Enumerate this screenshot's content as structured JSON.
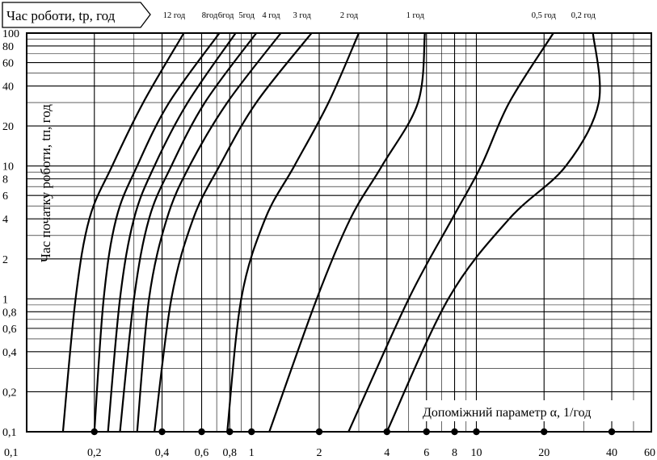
{
  "chart_data": {
    "type": "line",
    "title": "",
    "curve_axis_label": "Час роботи, tр, год",
    "ylabel": "Час початку роботи, tп, год",
    "xlabel": "Допоміжний параметр α, 1/год",
    "x_scale": "log",
    "y_scale": "log",
    "xlim": [
      0.1,
      60
    ],
    "ylim": [
      0.1,
      100
    ],
    "grid": true,
    "x_ticks": [
      0.1,
      0.2,
      0.4,
      0.6,
      0.8,
      1,
      2,
      4,
      6,
      8,
      10,
      20,
      40,
      60
    ],
    "x_tick_labels": [
      "0,1",
      "0,2",
      "0,4",
      "0,6",
      "0,8",
      "1",
      "2",
      "4",
      "6",
      "8",
      "10",
      "20",
      "40",
      "60"
    ],
    "y_ticks": [
      0.1,
      0.2,
      0.4,
      0.6,
      0.8,
      1,
      2,
      4,
      6,
      8,
      10,
      20,
      40,
      60,
      80,
      100
    ],
    "y_tick_labels": [
      "0,1",
      "0,2",
      "0,4",
      "0,6",
      "0,8",
      "1",
      "2",
      "4",
      "6",
      "8",
      "10",
      "20",
      "40",
      "60",
      "80",
      "100"
    ],
    "x_markers": [
      0.2,
      0.4,
      0.6,
      0.8,
      1,
      2,
      4,
      6,
      8,
      10,
      20,
      40
    ],
    "series": [
      {
        "name": "12 год",
        "x": [
          0.145,
          0.165,
          0.19,
          0.24,
          0.33,
          0.5
        ],
        "y": [
          0.1,
          1,
          4,
          10,
          30,
          100
        ]
      },
      {
        "name": "8год",
        "x": [
          0.2,
          0.22,
          0.25,
          0.31,
          0.43,
          0.72
        ],
        "y": [
          0.1,
          1,
          4,
          10,
          30,
          100
        ]
      },
      {
        "name": "6год",
        "x": [
          0.23,
          0.26,
          0.3,
          0.37,
          0.52,
          0.85
        ],
        "y": [
          0.1,
          1,
          4,
          10,
          30,
          100
        ]
      },
      {
        "name": "5год",
        "x": [
          0.26,
          0.3,
          0.35,
          0.44,
          0.62,
          1.05
        ],
        "y": [
          0.1,
          1,
          4,
          10,
          30,
          100
        ]
      },
      {
        "name": "4 год",
        "x": [
          0.31,
          0.35,
          0.42,
          0.53,
          0.78,
          1.35
        ],
        "y": [
          0.1,
          1,
          4,
          10,
          30,
          100
        ]
      },
      {
        "name": "3 год",
        "x": [
          0.37,
          0.44,
          0.55,
          0.72,
          1.05,
          1.85
        ],
        "y": [
          0.1,
          1,
          4,
          10,
          30,
          100
        ]
      },
      {
        "name": "2 год",
        "x": [
          0.78,
          0.9,
          1.15,
          1.55,
          2.2,
          3.0
        ],
        "y": [
          0.1,
          1,
          4,
          10,
          30,
          100
        ]
      },
      {
        "name": "1 год",
        "x": [
          1.2,
          1.95,
          2.75,
          3.8,
          5.5,
          5.9
        ],
        "y": [
          0.1,
          1,
          4,
          10,
          30,
          100
        ]
      },
      {
        "name": "0,5 год",
        "x": [
          2.7,
          5.0,
          7.8,
          10.5,
          14.0,
          22.0
        ],
        "y": [
          0.1,
          1,
          4,
          10,
          30,
          100
        ]
      },
      {
        "name": "0,2 год",
        "x": [
          4.0,
          7.5,
          14.0,
          25.0,
          35.0,
          33.0
        ],
        "y": [
          0.1,
          1,
          4,
          10,
          30,
          100
        ]
      }
    ]
  }
}
